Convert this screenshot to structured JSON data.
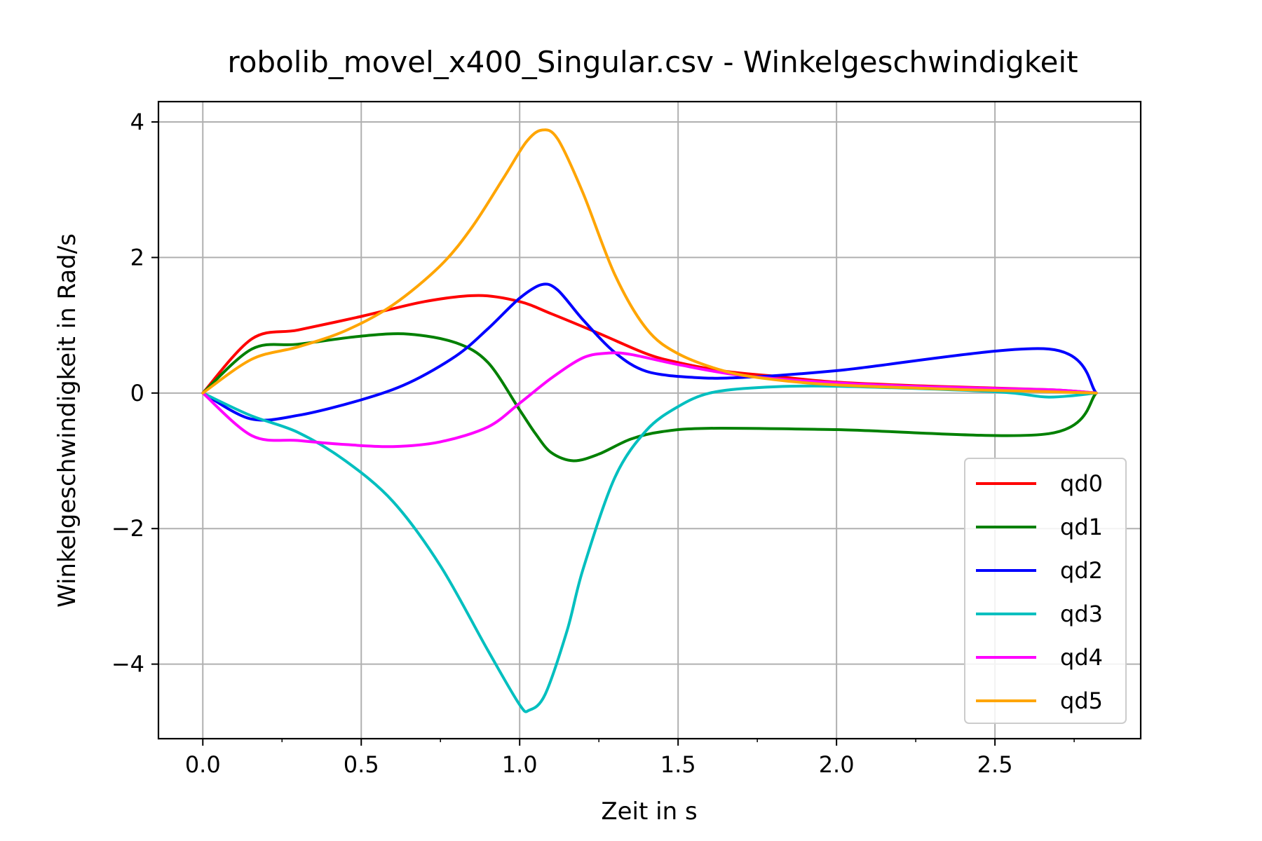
{
  "chart_data": {
    "type": "line",
    "title": "robolib_movel_x400_Singular.csv - Winkelgeschwindigkeit",
    "xlabel": "Zeit in s",
    "ylabel": "Winkelgeschwindigkeit in Rad/s",
    "xlim": [
      -0.14,
      2.96
    ],
    "ylim": [
      -5.1,
      4.3
    ],
    "xticks": [
      0.0,
      0.5,
      1.0,
      1.5,
      2.0,
      2.5
    ],
    "xtick_labels": [
      "0.0",
      "0.5",
      "1.0",
      "1.5",
      "2.0",
      "2.5"
    ],
    "xminor_ticks": [
      0.25,
      0.75,
      1.25,
      1.75,
      2.25,
      2.75
    ],
    "yticks": [
      -4,
      -2,
      0,
      2,
      4
    ],
    "ytick_labels": [
      "−4",
      "−2",
      "0",
      "2",
      "4"
    ],
    "grid": true,
    "legend_position": "lower-right",
    "series": [
      {
        "name": "qd0",
        "color": "#ff0000",
        "points": [
          [
            0,
            0
          ],
          [
            0.155,
            0.8
          ],
          [
            0.3,
            0.93
          ],
          [
            0.5,
            1.13
          ],
          [
            0.7,
            1.35
          ],
          [
            0.87,
            1.44
          ],
          [
            1.0,
            1.35
          ],
          [
            1.1,
            1.17
          ],
          [
            1.25,
            0.88
          ],
          [
            1.4,
            0.58
          ],
          [
            1.5,
            0.45
          ],
          [
            1.65,
            0.32
          ],
          [
            1.8,
            0.25
          ],
          [
            2.0,
            0.16
          ],
          [
            2.3,
            0.1
          ],
          [
            2.67,
            0.05
          ],
          [
            2.82,
            0
          ]
        ]
      },
      {
        "name": "qd1",
        "color": "#008000",
        "points": [
          [
            0,
            0
          ],
          [
            0.155,
            0.65
          ],
          [
            0.3,
            0.72
          ],
          [
            0.5,
            0.84
          ],
          [
            0.65,
            0.87
          ],
          [
            0.8,
            0.74
          ],
          [
            0.9,
            0.45
          ],
          [
            1.0,
            -0.25
          ],
          [
            1.05,
            -0.6
          ],
          [
            1.1,
            -0.88
          ],
          [
            1.17,
            -1.0
          ],
          [
            1.25,
            -0.9
          ],
          [
            1.35,
            -0.68
          ],
          [
            1.45,
            -0.57
          ],
          [
            1.6,
            -0.52
          ],
          [
            2.0,
            -0.54
          ],
          [
            2.67,
            -0.6
          ],
          [
            2.82,
            0
          ]
        ]
      },
      {
        "name": "qd2",
        "color": "#0000ff",
        "points": [
          [
            0,
            0
          ],
          [
            0.15,
            -0.38
          ],
          [
            0.3,
            -0.33
          ],
          [
            0.5,
            -0.1
          ],
          [
            0.65,
            0.15
          ],
          [
            0.8,
            0.55
          ],
          [
            0.9,
            0.95
          ],
          [
            1.0,
            1.4
          ],
          [
            1.07,
            1.6
          ],
          [
            1.12,
            1.52
          ],
          [
            1.2,
            1.08
          ],
          [
            1.3,
            0.6
          ],
          [
            1.4,
            0.32
          ],
          [
            1.55,
            0.23
          ],
          [
            1.7,
            0.23
          ],
          [
            2.0,
            0.33
          ],
          [
            2.67,
            0.65
          ],
          [
            2.82,
            0
          ]
        ]
      },
      {
        "name": "qd3",
        "color": "#00bfbf",
        "points": [
          [
            0,
            0
          ],
          [
            0.15,
            -0.33
          ],
          [
            0.3,
            -0.58
          ],
          [
            0.45,
            -1.0
          ],
          [
            0.6,
            -1.6
          ],
          [
            0.75,
            -2.55
          ],
          [
            0.9,
            -3.8
          ],
          [
            1.0,
            -4.6
          ],
          [
            1.03,
            -4.68
          ],
          [
            1.08,
            -4.45
          ],
          [
            1.15,
            -3.5
          ],
          [
            1.2,
            -2.6
          ],
          [
            1.3,
            -1.25
          ],
          [
            1.4,
            -0.55
          ],
          [
            1.5,
            -0.2
          ],
          [
            1.6,
            0.0
          ],
          [
            1.75,
            0.08
          ],
          [
            2.0,
            0.1
          ],
          [
            2.5,
            0.02
          ],
          [
            2.67,
            -0.06
          ],
          [
            2.82,
            0
          ]
        ]
      },
      {
        "name": "qd4",
        "color": "#ff00ff",
        "points": [
          [
            0,
            0
          ],
          [
            0.155,
            -0.63
          ],
          [
            0.3,
            -0.7
          ],
          [
            0.45,
            -0.76
          ],
          [
            0.6,
            -0.79
          ],
          [
            0.75,
            -0.72
          ],
          [
            0.9,
            -0.5
          ],
          [
            1.0,
            -0.15
          ],
          [
            1.1,
            0.22
          ],
          [
            1.2,
            0.52
          ],
          [
            1.28,
            0.59
          ],
          [
            1.35,
            0.57
          ],
          [
            1.5,
            0.42
          ],
          [
            1.7,
            0.26
          ],
          [
            2.0,
            0.15
          ],
          [
            2.3,
            0.09
          ],
          [
            2.67,
            0.05
          ],
          [
            2.82,
            0
          ]
        ]
      },
      {
        "name": "qd5",
        "color": "#ffa500",
        "points": [
          [
            0,
            0
          ],
          [
            0.155,
            0.5
          ],
          [
            0.3,
            0.68
          ],
          [
            0.45,
            0.92
          ],
          [
            0.6,
            1.3
          ],
          [
            0.75,
            1.88
          ],
          [
            0.85,
            2.45
          ],
          [
            0.95,
            3.18
          ],
          [
            1.02,
            3.7
          ],
          [
            1.07,
            3.88
          ],
          [
            1.12,
            3.75
          ],
          [
            1.2,
            2.95
          ],
          [
            1.3,
            1.75
          ],
          [
            1.4,
            0.95
          ],
          [
            1.5,
            0.58
          ],
          [
            1.65,
            0.32
          ],
          [
            1.8,
            0.2
          ],
          [
            2.0,
            0.12
          ],
          [
            2.4,
            0.05
          ],
          [
            2.67,
            0.02
          ],
          [
            2.82,
            0
          ]
        ]
      }
    ]
  }
}
